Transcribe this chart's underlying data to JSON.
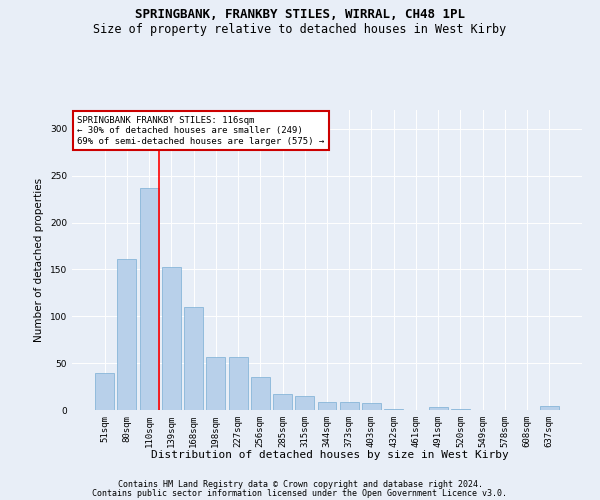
{
  "title1": "SPRINGBANK, FRANKBY STILES, WIRRAL, CH48 1PL",
  "title2": "Size of property relative to detached houses in West Kirby",
  "xlabel": "Distribution of detached houses by size in West Kirby",
  "ylabel": "Number of detached properties",
  "categories": [
    "51sqm",
    "80sqm",
    "110sqm",
    "139sqm",
    "168sqm",
    "198sqm",
    "227sqm",
    "256sqm",
    "285sqm",
    "315sqm",
    "344sqm",
    "373sqm",
    "403sqm",
    "432sqm",
    "461sqm",
    "491sqm",
    "520sqm",
    "549sqm",
    "578sqm",
    "608sqm",
    "637sqm"
  ],
  "values": [
    40,
    161,
    237,
    153,
    110,
    57,
    57,
    35,
    17,
    15,
    9,
    9,
    7,
    1,
    0,
    3,
    1,
    0,
    0,
    0,
    4
  ],
  "bar_color": "#b8d0ea",
  "bar_edge_color": "#7aaed4",
  "annotation_text": "SPRINGBANK FRANKBY STILES: 116sqm\n← 30% of detached houses are smaller (249)\n69% of semi-detached houses are larger (575) →",
  "annotation_box_color": "#ffffff",
  "annotation_box_edge": "#cc0000",
  "red_line_bar_index": 2,
  "ylim": [
    0,
    320
  ],
  "yticks": [
    0,
    50,
    100,
    150,
    200,
    250,
    300
  ],
  "background_color": "#e8eef7",
  "footer1": "Contains HM Land Registry data © Crown copyright and database right 2024.",
  "footer2": "Contains public sector information licensed under the Open Government Licence v3.0.",
  "title1_fontsize": 9,
  "title2_fontsize": 8.5,
  "xlabel_fontsize": 8,
  "ylabel_fontsize": 7.5,
  "tick_fontsize": 6.5,
  "annotation_fontsize": 6.5,
  "footer_fontsize": 6
}
